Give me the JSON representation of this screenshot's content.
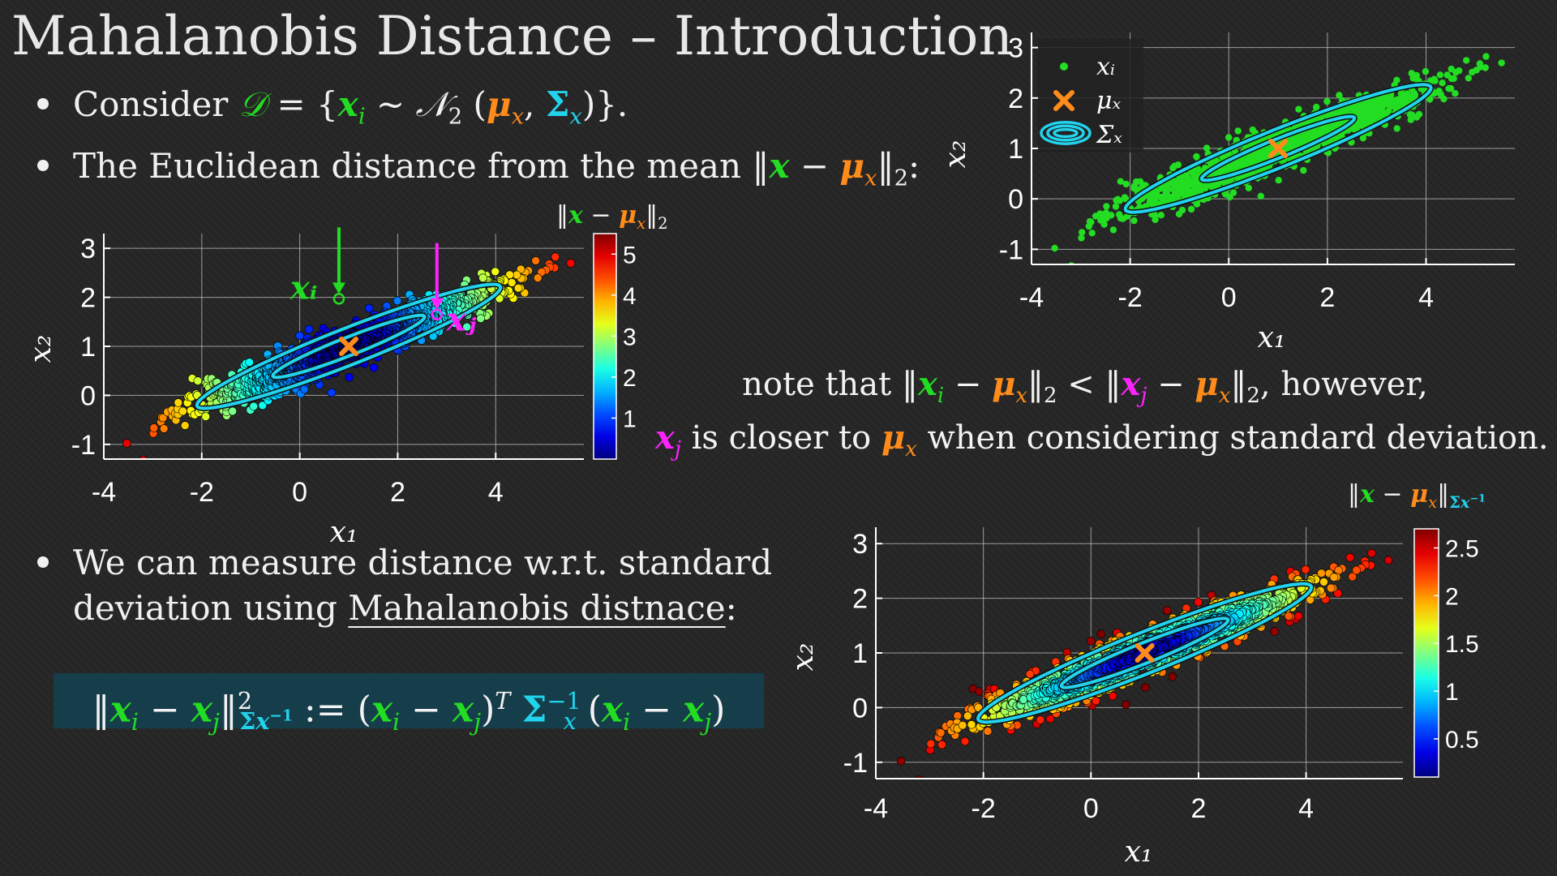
{
  "slide": {
    "title": "Mahalanobis Distance – Introduction",
    "bullet1": {
      "text": "Consider",
      "set": "𝒟",
      "rest": "= {xᵢ ~ 𝒩₂ (μₓ, Σₓ)}."
    },
    "bullet2": {
      "text": "The Euclidean distance from the mean",
      "expr": "‖x − μₓ‖₂:"
    },
    "bullet3": {
      "line1": "We can measure distance w.r.t. standard",
      "line2a": "deviation using",
      "line2b": "Mahalanobis distnace",
      "line2c": ":"
    },
    "note": {
      "line1a": "note that",
      "line1b": "‖xᵢ − μₓ‖₂ < ‖xⱼ − μₓ‖₂",
      "line1c": ", however,",
      "line2a": "xⱼ",
      "line2b": "is closer to",
      "line2c": "μₓ",
      "line2d": "when considering standard deviation."
    },
    "formula": "‖xᵢ − xⱼ‖²Σ⁻¹ := (xᵢ − xⱼ)ᵀ Σₓ⁻¹ (xᵢ − xⱼ)"
  },
  "chart_data": [
    {
      "id": "top-right",
      "type": "scatter",
      "xlim": [
        -4,
        5.8
      ],
      "ylim": [
        -1.3,
        3.3
      ],
      "xticks": [
        "-4",
        "-2",
        "0",
        "2",
        "4"
      ],
      "yticks": [
        "-1",
        "0",
        "1",
        "2",
        "3"
      ],
      "xlabel": "x₁",
      "ylabel": "x₂",
      "grid": true,
      "legend": {
        "placement": "top-left",
        "entries": [
          "xᵢ",
          "μₓ",
          "Σₓ"
        ]
      },
      "mean": [
        1,
        1
      ],
      "point_color": "#22dd22",
      "ellipse_color": "#22d3ee",
      "colored_by": "none"
    },
    {
      "id": "middle-left",
      "type": "scatter",
      "xlim": [
        -4,
        5.8
      ],
      "ylim": [
        -1.3,
        3.3
      ],
      "xticks": [
        "-4",
        "-2",
        "0",
        "2",
        "4"
      ],
      "yticks": [
        "-1",
        "0",
        "1",
        "2",
        "3"
      ],
      "xlabel": "x₁",
      "ylabel": "x₂",
      "grid": true,
      "mean": [
        1,
        1
      ],
      "colorbar": {
        "title": "‖x − μₓ‖₂",
        "range": [
          0,
          5.5
        ],
        "ticks": [
          "1",
          "2",
          "3",
          "4",
          "5"
        ]
      },
      "annotations": [
        {
          "label": "xᵢ",
          "point": [
            0.8,
            1.97
          ],
          "color": "#22dd22"
        },
        {
          "label": "xⱼ",
          "point": [
            2.8,
            1.65
          ],
          "color": "#ff22ff"
        }
      ],
      "colored_by": "euclidean"
    },
    {
      "id": "bottom-right",
      "type": "scatter",
      "xlim": [
        -4,
        5.8
      ],
      "ylim": [
        -1.3,
        3.3
      ],
      "xticks": [
        "-4",
        "-2",
        "0",
        "2",
        "4"
      ],
      "yticks": [
        "-1",
        "0",
        "1",
        "2",
        "3"
      ],
      "xlabel": "x₁",
      "ylabel": "x₂",
      "grid": true,
      "mean": [
        1,
        1
      ],
      "colorbar": {
        "title": "‖x − μₓ‖Σₓ⁻¹",
        "range": [
          0.1,
          2.7
        ],
        "ticks": [
          "0.5",
          "1",
          "1.5",
          "2",
          "2.5"
        ]
      },
      "colored_by": "mahalanobis"
    }
  ]
}
